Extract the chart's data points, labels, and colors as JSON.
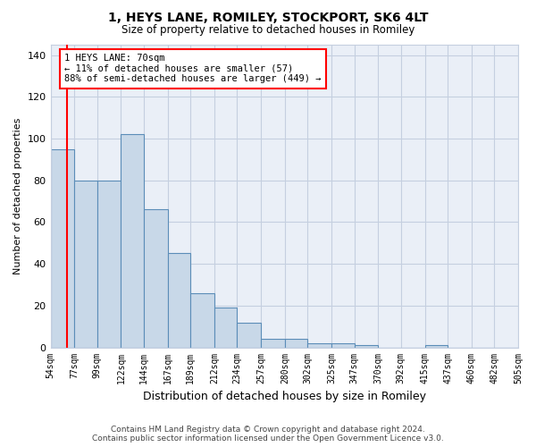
{
  "title": "1, HEYS LANE, ROMILEY, STOCKPORT, SK6 4LT",
  "subtitle": "Size of property relative to detached houses in Romiley",
  "xlabel": "Distribution of detached houses by size in Romiley",
  "ylabel": "Number of detached properties",
  "bar_edges": [
    54,
    77,
    99,
    122,
    144,
    167,
    189,
    212,
    234,
    257,
    280,
    302,
    325,
    347,
    370,
    392,
    415,
    437,
    460,
    482,
    505
  ],
  "bar_heights": [
    95,
    80,
    80,
    102,
    66,
    45,
    26,
    19,
    12,
    4,
    4,
    2,
    2,
    1,
    0,
    0,
    1,
    0,
    0,
    0
  ],
  "bar_color": "#c8d8e8",
  "bar_edge_color": "#5b8db8",
  "red_line_x": 70,
  "ylim": [
    0,
    145
  ],
  "yticks": [
    0,
    20,
    40,
    60,
    80,
    100,
    120,
    140
  ],
  "annotation_lines": [
    "1 HEYS LANE: 70sqm",
    "← 11% of detached houses are smaller (57)",
    "88% of semi-detached houses are larger (449) →"
  ],
  "footer_line1": "Contains HM Land Registry data © Crown copyright and database right 2024.",
  "footer_line2": "Contains public sector information licensed under the Open Government Licence v3.0.",
  "grid_color": "#c5cfe0",
  "background_color": "#eaeff7"
}
